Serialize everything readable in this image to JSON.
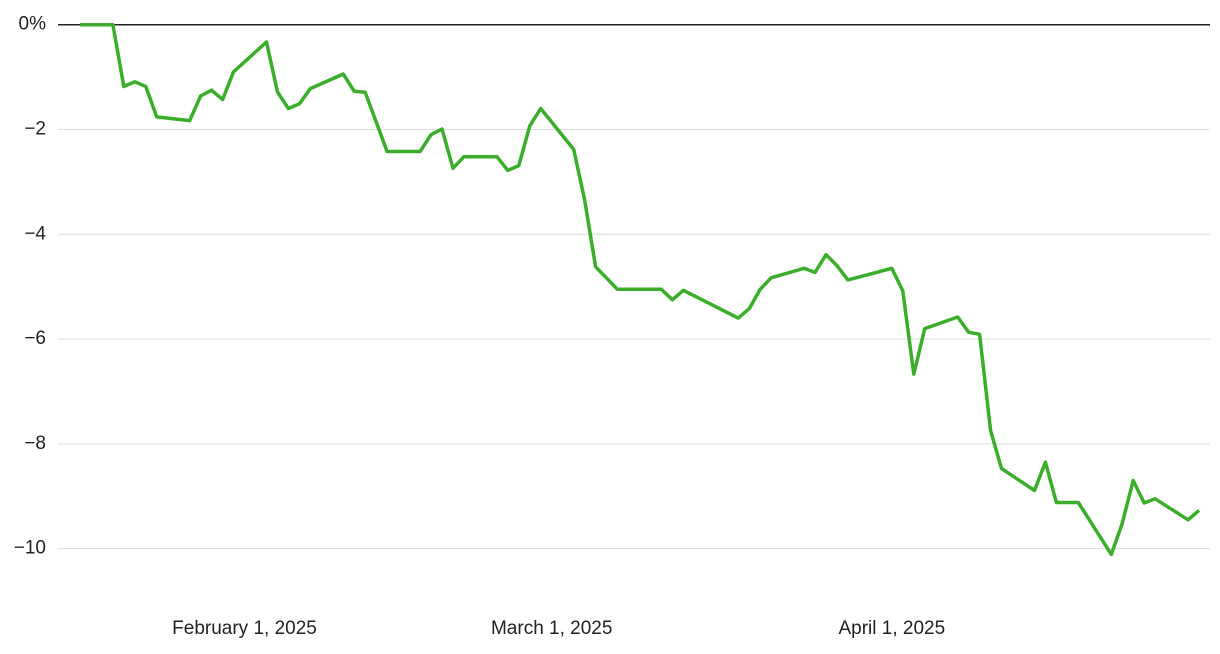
{
  "chart_data": {
    "type": "line",
    "x": [
      "2025-01-17",
      "2025-01-20",
      "2025-01-21",
      "2025-01-22",
      "2025-01-23",
      "2025-01-24",
      "2025-01-27",
      "2025-01-28",
      "2025-01-29",
      "2025-01-30",
      "2025-01-31",
      "2025-02-03",
      "2025-02-04",
      "2025-02-05",
      "2025-02-06",
      "2025-02-07",
      "2025-02-10",
      "2025-02-11",
      "2025-02-12",
      "2025-02-14",
      "2025-02-17",
      "2025-02-18",
      "2025-02-19",
      "2025-02-20",
      "2025-02-21",
      "2025-02-24",
      "2025-02-25",
      "2025-02-26",
      "2025-02-27",
      "2025-02-28",
      "2025-03-03",
      "2025-03-04",
      "2025-03-05",
      "2025-03-07",
      "2025-03-11",
      "2025-03-12",
      "2025-03-13",
      "2025-03-18",
      "2025-03-19",
      "2025-03-20",
      "2025-03-21",
      "2025-03-24",
      "2025-03-25",
      "2025-03-26",
      "2025-03-27",
      "2025-03-28",
      "2025-04-01",
      "2025-04-02",
      "2025-04-03",
      "2025-04-04",
      "2025-04-07",
      "2025-04-08",
      "2025-04-09",
      "2025-04-10",
      "2025-04-11",
      "2025-04-14",
      "2025-04-15",
      "2025-04-16",
      "2025-04-18",
      "2025-04-21",
      "2025-04-22",
      "2025-04-23",
      "2025-04-24",
      "2025-04-25",
      "2025-04-28",
      "2025-04-29"
    ],
    "series": [
      {
        "color": "#3aae2a",
        "values": [
          0,
          0,
          -1.18,
          -1.09,
          -1.18,
          -1.76,
          -1.83,
          -1.36,
          -1.25,
          -1.43,
          -0.9,
          -0.33,
          -1.28,
          -1.6,
          -1.51,
          -1.22,
          -0.94,
          -1.27,
          -1.29,
          -2.42,
          -2.42,
          -2.1,
          -1.99,
          -2.74,
          -2.52,
          -2.52,
          -2.78,
          -2.69,
          -1.93,
          -1.6,
          -2.38,
          -3.34,
          -4.62,
          -5.05,
          -5.05,
          -5.25,
          -5.07,
          -5.6,
          -5.42,
          -5.05,
          -4.83,
          -4.65,
          -4.73,
          -4.39,
          -4.6,
          -4.87,
          -4.65,
          -5.08,
          -6.67,
          -5.8,
          -5.58,
          -5.87,
          -5.91,
          -7.75,
          -8.47,
          -8.89,
          -8.35,
          -9.12,
          -9.12,
          -10.11,
          -9.52,
          -8.7,
          -9.13,
          -9.05,
          -9.45,
          -9.27
        ]
      }
    ],
    "xlim": [
      "2025-01-15",
      "2025-04-30"
    ],
    "xticks": [
      {
        "value": "2025-02-01",
        "label": "February 1, 2025"
      },
      {
        "value": "2025-03-01",
        "label": "March 1, 2025"
      },
      {
        "value": "2025-04-01",
        "label": "April 1, 2025"
      }
    ],
    "ylim": [
      -11,
      0.3
    ],
    "yticks": [
      {
        "value": 0,
        "label": "0%"
      },
      {
        "value": -2,
        "label": "−2"
      },
      {
        "value": -4,
        "label": "−4"
      },
      {
        "value": -6,
        "label": "−6"
      },
      {
        "value": -8,
        "label": "−8"
      },
      {
        "value": -10,
        "label": "−10"
      }
    ],
    "grid": true
  }
}
